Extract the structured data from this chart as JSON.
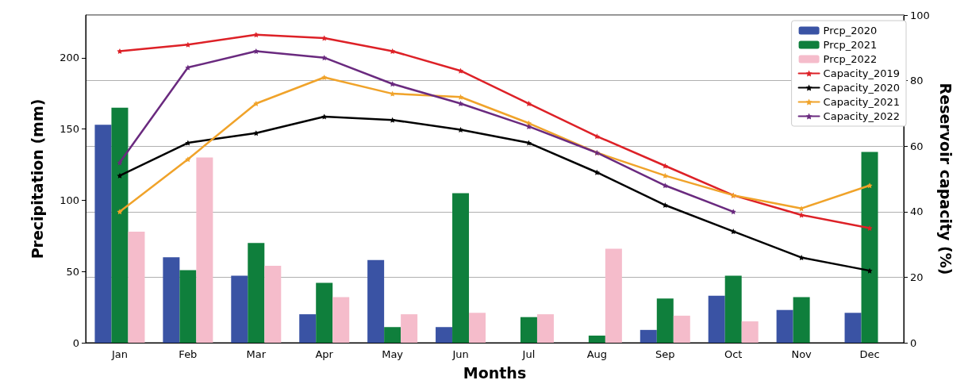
{
  "chart_data": {
    "type": "bar",
    "xlabel": "Months",
    "ylabel": "Precipitation (mm)",
    "y2label": "Reservoir capacity (%)",
    "categories": [
      "Jan",
      "Feb",
      "Mar",
      "Apr",
      "May",
      "Jun",
      "Jul",
      "Aug",
      "Sep",
      "Oct",
      "Nov",
      "Dec"
    ],
    "series": [
      {
        "name": "Prcp_2020",
        "color": "#3a53a4",
        "values": [
          153,
          60,
          47,
          20,
          58,
          11,
          null,
          null,
          9,
          33,
          23,
          21
        ]
      },
      {
        "name": "Prcp_2021",
        "color": "#0f7f3c",
        "values": [
          165,
          51,
          70,
          42,
          11,
          105,
          18,
          5,
          31,
          47,
          32,
          134
        ]
      },
      {
        "name": "Prcp_2022",
        "color": "#f5bccb",
        "values": [
          78,
          130,
          54,
          32,
          20,
          21,
          20,
          66,
          19,
          15,
          null,
          null
        ]
      },
      {
        "name": "Capacity_2019",
        "type": "line",
        "axis": "y2",
        "color": "#dd2127",
        "values": [
          89,
          91,
          94,
          93,
          89,
          83,
          73,
          63,
          54,
          45,
          39,
          35
        ]
      },
      {
        "name": "Capacity_2020",
        "type": "line",
        "axis": "y2",
        "color": "#000000",
        "values": [
          51,
          61,
          64,
          69,
          68,
          65,
          61,
          52,
          42,
          34,
          26,
          22
        ]
      },
      {
        "name": "Capacity_2021",
        "type": "line",
        "axis": "y2",
        "color": "#f0a32a",
        "values": [
          40,
          56,
          73,
          81,
          76,
          75,
          67,
          58,
          51,
          45,
          41,
          48
        ]
      },
      {
        "name": "Capacity_2022",
        "type": "line",
        "axis": "y2",
        "color": "#6a2a7f",
        "values": [
          55,
          84,
          89,
          87,
          79,
          73,
          66,
          58,
          48,
          40,
          null,
          null
        ]
      }
    ],
    "ylim": [
      0,
      230
    ],
    "yticks": [
      0,
      50,
      100,
      150,
      200
    ],
    "y2lim": [
      0,
      100
    ],
    "y2ticks": [
      0,
      20,
      40,
      60,
      80,
      100
    ],
    "grid": "y",
    "legend": "top right",
    "marker": "star",
    "line_style": "solid"
  }
}
